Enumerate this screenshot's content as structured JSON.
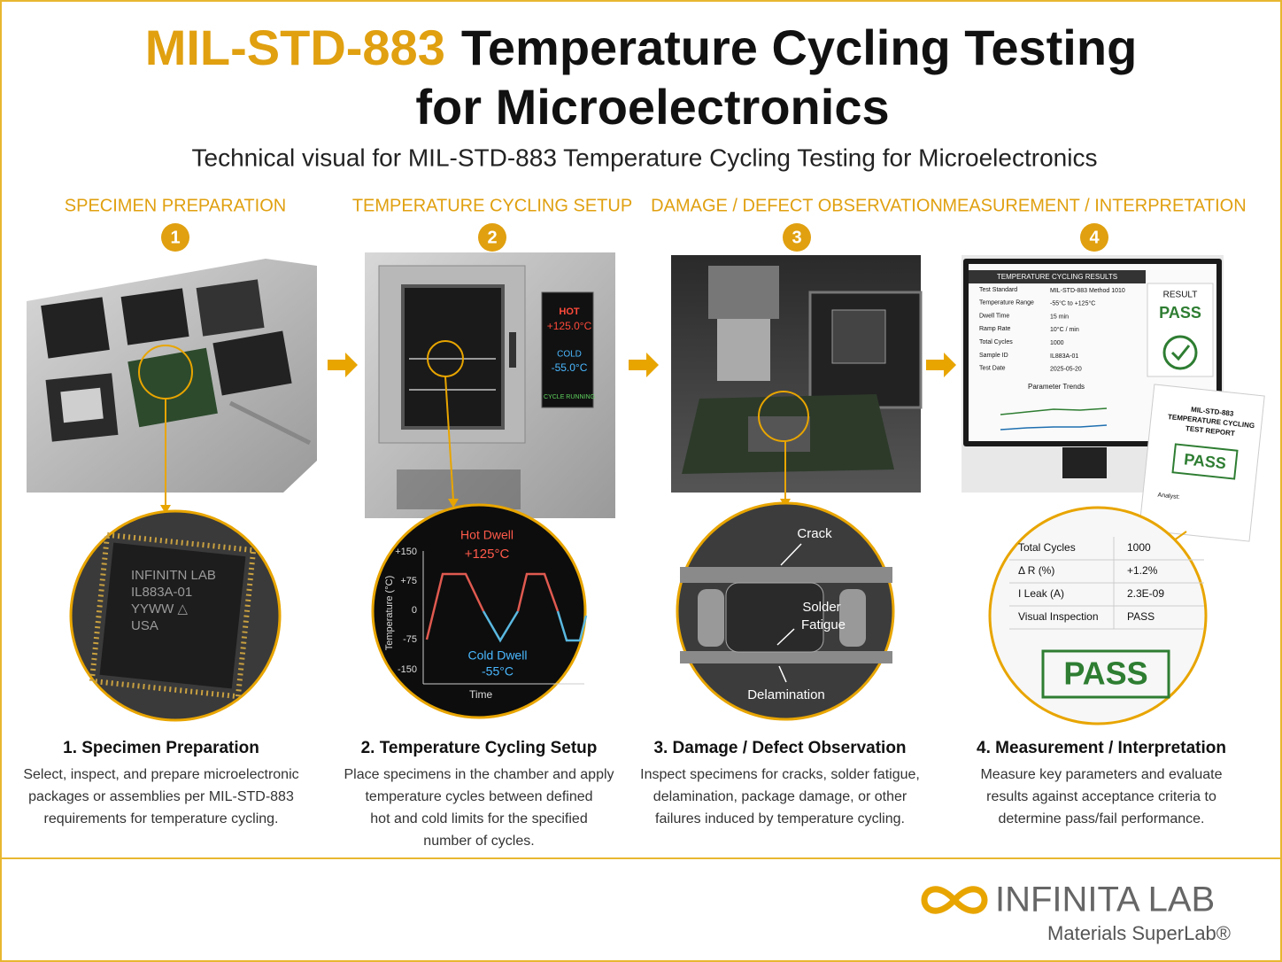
{
  "header": {
    "title_highlight": "MIL-STD-883",
    "title_lines": [
      "Temperature Cycling Testing",
      "for Microelectronics"
    ],
    "subtitle": "Technical visual for MIL-STD-883 Temperature Cycling Testing for Microelectronics"
  },
  "steps": [
    {
      "heading": "SPECIMEN PREPARATION",
      "number": "1",
      "caption_title": "1. Specimen Preparation",
      "caption_lines": [
        "Select, inspect, and prepare microelectronic",
        "packages or assemblies per MIL-STD-883",
        "requirements for temperature cycling."
      ],
      "chip_label": [
        "INFINITN LAB",
        "IL883A-01",
        "YYWW △",
        "USA"
      ]
    },
    {
      "heading": "TEMPERATURE CYCLING SETUP",
      "number": "2",
      "caption_title": "2. Temperature Cycling Setup",
      "caption_lines": [
        "Place specimens in the chamber and apply",
        "temperature cycles between defined",
        "hot and cold limits for the specified",
        "number of cycles."
      ],
      "display": {
        "hot_label": "HOT",
        "hot_value": "+125.0°C",
        "cold_label": "COLD",
        "cold_value": "-55.0°C",
        "status": "CYCLE RUNNING"
      },
      "profile": {
        "hot_label": "Hot Dwell",
        "hot_value": "+125°C",
        "cold_label": "Cold Dwell",
        "cold_value": "-55°C",
        "y_label": "Temperature (°C)",
        "x_label": "Time",
        "y_tick_labels": [
          "+150",
          "+75",
          "0",
          "-75",
          "-150"
        ]
      }
    },
    {
      "heading": "DAMAGE / DEFECT OBSERVATION",
      "number": "3",
      "caption_title": "3. Damage / Defect Observation",
      "caption_lines": [
        "Inspect specimens for cracks, solder fatigue,",
        "delamination, package damage, or other",
        "failures induced by temperature cycling."
      ],
      "defects": {
        "crack": "Crack",
        "solder_fatigue": [
          "Solder",
          "Fatigue"
        ],
        "delamination": "Delamination"
      }
    },
    {
      "heading": "MEASUREMENT / INTERPRETATION",
      "number": "4",
      "caption_title": "4. Measurement / Interpretation",
      "caption_lines": [
        "Measure key parameters and evaluate",
        "results against acceptance criteria to",
        "determine pass/fail performance."
      ],
      "screen": {
        "title": "TEMPERATURE CYCLING RESULTS",
        "rows": [
          [
            "Test Standard",
            "MIL-STD-883 Method 1010"
          ],
          [
            "Temperature Range",
            "-55°C to +125°C"
          ],
          [
            "Dwell Time",
            "15 min"
          ],
          [
            "Ramp Rate",
            "10°C / min"
          ],
          [
            "Total Cycles",
            "1000"
          ],
          [
            "Sample ID",
            "IL883A-01"
          ],
          [
            "Test Date",
            "2025-05-20"
          ]
        ],
        "result_label": "RESULT",
        "result": "PASS",
        "trends": "Parameter Trends"
      },
      "report": {
        "title": [
          "MIL-STD-883",
          "TEMPERATURE CYCLING",
          "TEST REPORT"
        ],
        "stamp": "PASS",
        "analyst": "Analyst:"
      },
      "zoom_table": [
        [
          "Total Cycles",
          "1000"
        ],
        [
          "Δ R (%)",
          "+1.2%"
        ],
        [
          "I Leak (A)",
          "2.3E-09"
        ],
        [
          "Visual Inspection",
          "PASS"
        ]
      ],
      "zoom_stamp": "PASS"
    }
  ],
  "footer": {
    "brand": "INFINITA LAB",
    "tagline": "Materials SuperLab®"
  }
}
